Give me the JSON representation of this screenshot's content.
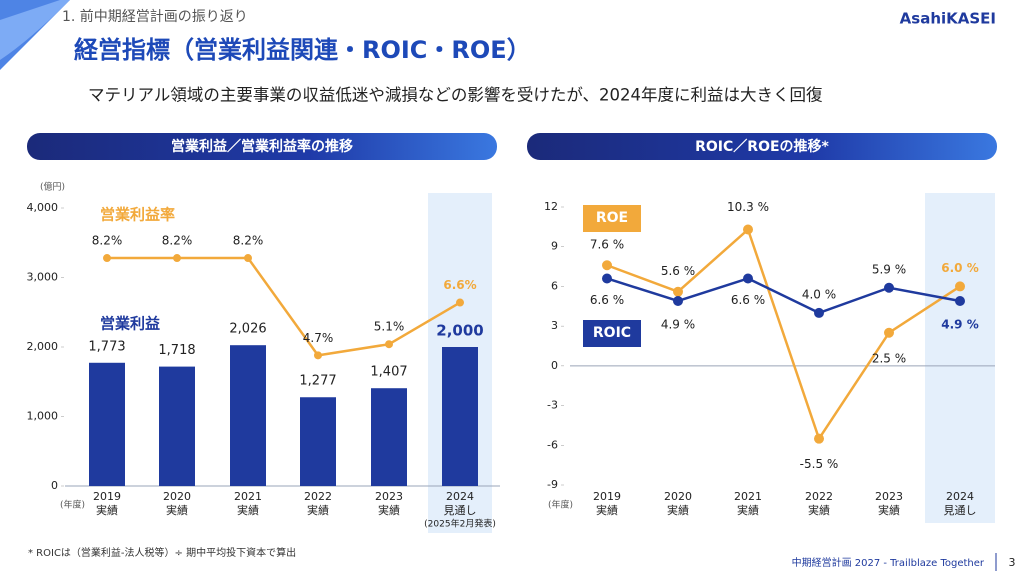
{
  "header": {
    "section": "1. 前中期経営計画の振り返り",
    "title": "経営指標（営業利益関連・ROIC・ROE）",
    "subtitle": "マテリアル領域の主要事業の収益低迷や減損などの影響を受けたが、2024年度に利益は大きく回復",
    "logo": "AsahiKASEI"
  },
  "chart_data": [
    {
      "type": "bar",
      "title": "営業利益／営業利益率の推移",
      "y_unit": "(億円)",
      "x_unit": "(年度)",
      "categories": [
        "2019",
        "2020",
        "2021",
        "2022",
        "2023",
        "2024"
      ],
      "category_notes": [
        "実績",
        "実績",
        "実績",
        "実績",
        "実績",
        "見通し"
      ],
      "forecast_note": "(2025年2月発表)",
      "ylim": [
        0,
        4000
      ],
      "yticks": [
        0,
        {
          "value": 1000,
          "label": "1,000"
        },
        {
          "value": 2000,
          "label": "2,000"
        },
        {
          "value": 3000,
          "label": "3,000"
        },
        {
          "value": 4000,
          "label": "4,000"
        }
      ],
      "y2lim": [
        0,
        10
      ],
      "series": [
        {
          "name": "営業利益",
          "type": "bar",
          "color": "#1f3a9e",
          "values": [
            1773,
            1718,
            2026,
            1277,
            1407,
            2000
          ],
          "value_labels": [
            "1,773",
            "1,718",
            "2,026",
            "1,277",
            "1,407",
            "2,000"
          ]
        },
        {
          "name": "営業利益率",
          "type": "line",
          "axis": "y2",
          "color": "#f2a93b",
          "values": [
            8.2,
            8.2,
            8.2,
            4.7,
            5.1,
            6.6
          ],
          "value_labels": [
            "8.2%",
            "8.2%",
            "8.2%",
            "4.7%",
            "5.1%",
            "6.6%"
          ]
        }
      ]
    },
    {
      "type": "line",
      "title": "ROIC／ROEの推移*",
      "x_unit": "(年度)",
      "categories": [
        "2019",
        "2020",
        "2021",
        "2022",
        "2023",
        "2024"
      ],
      "category_notes": [
        "実績",
        "実績",
        "実績",
        "実績",
        "実績",
        "見通し"
      ],
      "ylim": [
        -9,
        12
      ],
      "yticks": [
        -9,
        -6,
        -3,
        0,
        3,
        6,
        9,
        12
      ],
      "series": [
        {
          "name": "ROE",
          "color": "#f2a93b",
          "values": [
            7.6,
            5.6,
            10.3,
            -5.5,
            2.5,
            6.0
          ],
          "value_labels": [
            "7.6 %",
            "5.6 %",
            "10.3 %",
            "-5.5 %",
            "2.5 %",
            "6.0 %"
          ]
        },
        {
          "name": "ROIC",
          "color": "#1f3a9e",
          "values": [
            6.6,
            4.9,
            6.6,
            4.0,
            5.9,
            4.9
          ],
          "value_labels": [
            "6.6 %",
            "4.9 %",
            "6.6 %",
            "4.0 %",
            "5.9 %",
            "4.9 %"
          ]
        }
      ]
    }
  ],
  "footnote": "* ROICは（営業利益-法人税等）÷ 期中平均投下資本で算出",
  "footer": {
    "text": "中期経営計画 2027 - Trailblaze Together",
    "page": "3"
  }
}
